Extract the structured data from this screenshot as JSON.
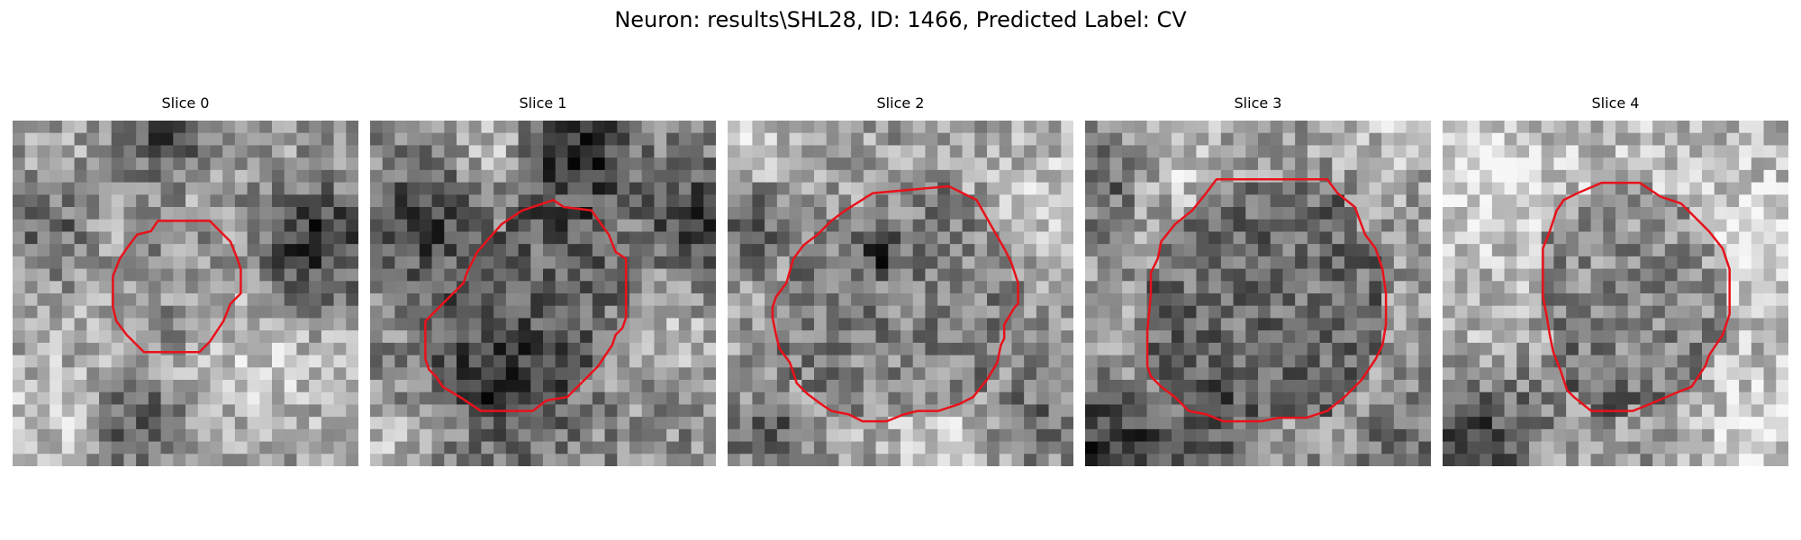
{
  "figure": {
    "title": "Neuron: results\\SHL28, ID: 1466, Predicted Label: CV",
    "contour_color": "#e8121b"
  },
  "slices": [
    {
      "label": "Slice 0",
      "seed": 11,
      "base_gray": 0.63,
      "inside_gray": 0.56,
      "dark_spots": [
        [
          0.45,
          0.05,
          0.08,
          0.42
        ],
        [
          0.88,
          0.35,
          0.12,
          0.45
        ],
        [
          0.1,
          0.3,
          0.09,
          0.25
        ],
        [
          0.35,
          0.88,
          0.1,
          0.32
        ]
      ],
      "bright_spots": [
        [
          0.15,
          0.85,
          0.12,
          0.18
        ],
        [
          0.7,
          0.7,
          0.14,
          0.15
        ]
      ],
      "contour": [
        [
          0.42,
          0.29
        ],
        [
          0.57,
          0.29
        ],
        [
          0.63,
          0.35
        ],
        [
          0.65,
          0.4
        ],
        [
          0.66,
          0.43
        ],
        [
          0.66,
          0.5
        ],
        [
          0.63,
          0.53
        ],
        [
          0.61,
          0.58
        ],
        [
          0.57,
          0.64
        ],
        [
          0.54,
          0.67
        ],
        [
          0.38,
          0.67
        ],
        [
          0.36,
          0.65
        ],
        [
          0.33,
          0.62
        ],
        [
          0.3,
          0.58
        ],
        [
          0.29,
          0.54
        ],
        [
          0.29,
          0.45
        ],
        [
          0.31,
          0.4
        ],
        [
          0.33,
          0.37
        ],
        [
          0.36,
          0.33
        ],
        [
          0.4,
          0.32
        ]
      ]
    },
    {
      "label": "Slice 1",
      "seed": 23,
      "base_gray": 0.55,
      "inside_gray": 0.42,
      "dark_spots": [
        [
          0.58,
          0.1,
          0.12,
          0.45
        ],
        [
          0.95,
          0.28,
          0.1,
          0.35
        ],
        [
          0.15,
          0.3,
          0.12,
          0.3
        ],
        [
          0.4,
          0.78,
          0.14,
          0.25
        ]
      ],
      "bright_spots": [
        [
          0.38,
          0.08,
          0.1,
          0.25
        ],
        [
          0.85,
          0.62,
          0.1,
          0.18
        ],
        [
          0.08,
          0.95,
          0.1,
          0.15
        ]
      ],
      "contour": [
        [
          0.44,
          0.26
        ],
        [
          0.53,
          0.23
        ],
        [
          0.56,
          0.25
        ],
        [
          0.64,
          0.26
        ],
        [
          0.69,
          0.33
        ],
        [
          0.71,
          0.38
        ],
        [
          0.74,
          0.4
        ],
        [
          0.74,
          0.57
        ],
        [
          0.73,
          0.6
        ],
        [
          0.71,
          0.62
        ],
        [
          0.7,
          0.65
        ],
        [
          0.66,
          0.71
        ],
        [
          0.63,
          0.74
        ],
        [
          0.6,
          0.77
        ],
        [
          0.57,
          0.8
        ],
        [
          0.51,
          0.81
        ],
        [
          0.47,
          0.84
        ],
        [
          0.32,
          0.84
        ],
        [
          0.26,
          0.8
        ],
        [
          0.21,
          0.77
        ],
        [
          0.19,
          0.74
        ],
        [
          0.17,
          0.72
        ],
        [
          0.16,
          0.69
        ],
        [
          0.16,
          0.58
        ],
        [
          0.21,
          0.53
        ],
        [
          0.24,
          0.5
        ],
        [
          0.27,
          0.47
        ],
        [
          0.28,
          0.44
        ],
        [
          0.31,
          0.38
        ],
        [
          0.38,
          0.3
        ]
      ]
    },
    {
      "label": "Slice 2",
      "seed": 37,
      "base_gray": 0.62,
      "inside_gray": 0.5,
      "dark_spots": [
        [
          0.05,
          0.3,
          0.1,
          0.25
        ],
        [
          0.12,
          0.9,
          0.08,
          0.3
        ],
        [
          0.88,
          0.85,
          0.1,
          0.2
        ],
        [
          0.44,
          0.39,
          0.04,
          0.35
        ]
      ],
      "bright_spots": [
        [
          0.05,
          0.05,
          0.1,
          0.25
        ],
        [
          0.92,
          0.2,
          0.1,
          0.18
        ],
        [
          0.6,
          0.92,
          0.12,
          0.18
        ]
      ],
      "contour": [
        [
          0.42,
          0.21
        ],
        [
          0.64,
          0.19
        ],
        [
          0.72,
          0.23
        ],
        [
          0.76,
          0.3
        ],
        [
          0.8,
          0.37
        ],
        [
          0.82,
          0.41
        ],
        [
          0.84,
          0.47
        ],
        [
          0.84,
          0.52
        ],
        [
          0.84,
          0.53
        ],
        [
          0.83,
          0.54
        ],
        [
          0.8,
          0.59
        ],
        [
          0.8,
          0.63
        ],
        [
          0.79,
          0.65
        ],
        [
          0.78,
          0.7
        ],
        [
          0.75,
          0.75
        ],
        [
          0.71,
          0.8
        ],
        [
          0.67,
          0.82
        ],
        [
          0.61,
          0.84
        ],
        [
          0.55,
          0.84
        ],
        [
          0.51,
          0.85
        ],
        [
          0.46,
          0.87
        ],
        [
          0.39,
          0.87
        ],
        [
          0.35,
          0.85
        ],
        [
          0.3,
          0.84
        ],
        [
          0.27,
          0.82
        ],
        [
          0.23,
          0.79
        ],
        [
          0.2,
          0.76
        ],
        [
          0.19,
          0.73
        ],
        [
          0.18,
          0.7
        ],
        [
          0.15,
          0.66
        ],
        [
          0.14,
          0.62
        ],
        [
          0.13,
          0.57
        ],
        [
          0.13,
          0.54
        ],
        [
          0.14,
          0.51
        ],
        [
          0.17,
          0.47
        ],
        [
          0.19,
          0.4
        ],
        [
          0.22,
          0.36
        ],
        [
          0.26,
          0.33
        ],
        [
          0.3,
          0.29
        ],
        [
          0.34,
          0.26
        ]
      ]
    },
    {
      "label": "Slice 3",
      "seed": 51,
      "base_gray": 0.6,
      "inside_gray": 0.42,
      "dark_spots": [
        [
          0.05,
          0.15,
          0.1,
          0.3
        ],
        [
          0.05,
          0.95,
          0.12,
          0.42
        ],
        [
          0.35,
          0.95,
          0.12,
          0.25
        ],
        [
          0.92,
          0.92,
          0.1,
          0.2
        ]
      ],
      "bright_spots": [
        [
          0.25,
          0.12,
          0.12,
          0.2
        ],
        [
          0.9,
          0.05,
          0.1,
          0.15
        ]
      ],
      "contour": [
        [
          0.38,
          0.17
        ],
        [
          0.7,
          0.17
        ],
        [
          0.73,
          0.21
        ],
        [
          0.78,
          0.25
        ],
        [
          0.81,
          0.33
        ],
        [
          0.84,
          0.37
        ],
        [
          0.86,
          0.43
        ],
        [
          0.87,
          0.5
        ],
        [
          0.87,
          0.59
        ],
        [
          0.86,
          0.65
        ],
        [
          0.84,
          0.69
        ],
        [
          0.8,
          0.75
        ],
        [
          0.75,
          0.8
        ],
        [
          0.7,
          0.84
        ],
        [
          0.64,
          0.86
        ],
        [
          0.56,
          0.86
        ],
        [
          0.51,
          0.87
        ],
        [
          0.47,
          0.87
        ],
        [
          0.4,
          0.87
        ],
        [
          0.35,
          0.85
        ],
        [
          0.3,
          0.84
        ],
        [
          0.26,
          0.8
        ],
        [
          0.22,
          0.77
        ],
        [
          0.19,
          0.74
        ],
        [
          0.18,
          0.71
        ],
        [
          0.18,
          0.61
        ],
        [
          0.19,
          0.5
        ],
        [
          0.19,
          0.44
        ],
        [
          0.21,
          0.4
        ],
        [
          0.22,
          0.35
        ],
        [
          0.26,
          0.3
        ],
        [
          0.31,
          0.26
        ],
        [
          0.35,
          0.21
        ]
      ]
    },
    {
      "label": "Slice 4",
      "seed": 67,
      "base_gray": 0.73,
      "inside_gray": 0.55,
      "dark_spots": [
        [
          0.06,
          0.97,
          0.12,
          0.55
        ],
        [
          0.25,
          0.8,
          0.14,
          0.18
        ],
        [
          0.6,
          0.9,
          0.14,
          0.15
        ]
      ],
      "bright_spots": [
        [
          0.12,
          0.15,
          0.12,
          0.18
        ],
        [
          0.9,
          0.35,
          0.1,
          0.18
        ],
        [
          0.88,
          0.9,
          0.1,
          0.15
        ]
      ],
      "contour": [
        [
          0.46,
          0.18
        ],
        [
          0.57,
          0.18
        ],
        [
          0.63,
          0.22
        ],
        [
          0.69,
          0.24
        ],
        [
          0.73,
          0.28
        ],
        [
          0.77,
          0.32
        ],
        [
          0.81,
          0.37
        ],
        [
          0.83,
          0.43
        ],
        [
          0.83,
          0.56
        ],
        [
          0.81,
          0.62
        ],
        [
          0.77,
          0.68
        ],
        [
          0.76,
          0.71
        ],
        [
          0.72,
          0.77
        ],
        [
          0.67,
          0.79
        ],
        [
          0.6,
          0.82
        ],
        [
          0.55,
          0.84
        ],
        [
          0.43,
          0.84
        ],
        [
          0.38,
          0.8
        ],
        [
          0.36,
          0.78
        ],
        [
          0.34,
          0.72
        ],
        [
          0.32,
          0.67
        ],
        [
          0.31,
          0.62
        ],
        [
          0.3,
          0.56
        ],
        [
          0.29,
          0.51
        ],
        [
          0.29,
          0.37
        ],
        [
          0.31,
          0.32
        ],
        [
          0.33,
          0.26
        ],
        [
          0.35,
          0.23
        ],
        [
          0.39,
          0.21
        ]
      ]
    }
  ]
}
